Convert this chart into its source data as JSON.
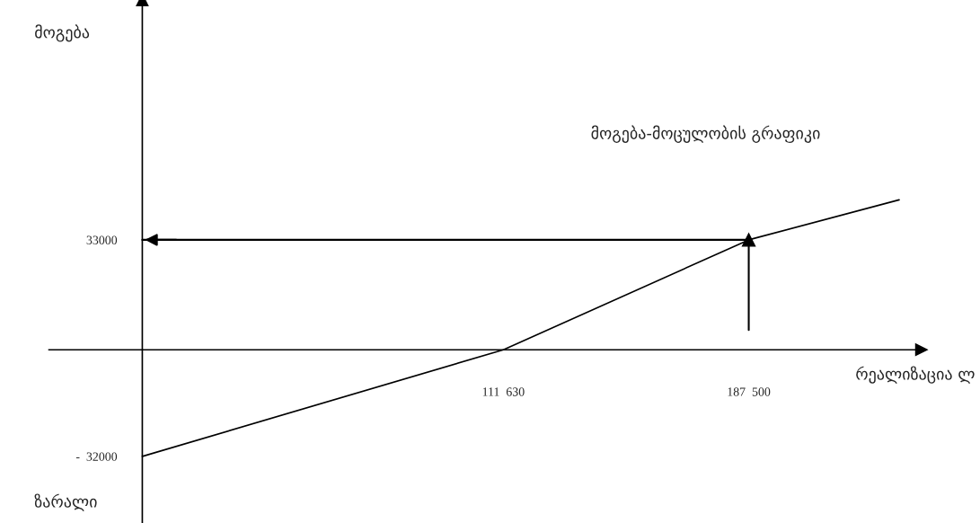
{
  "chart_data": {
    "type": "line",
    "title": "მოგება-მოცულობის გრაფიკი",
    "xlabel": "რეალიზაცია ლ",
    "ylabel": "მოგება",
    "annotations": [
      "ზარალი"
    ],
    "series": [
      {
        "color": "#000000",
        "x": [
          0,
          111630,
          187500,
          234000
        ],
        "values": [
          -32000,
          0,
          33000,
          45000
        ]
      }
    ],
    "xlim": [
      -44000,
      259000
    ],
    "ylim": [
      -52000,
      105000
    ],
    "xticks": [
      {
        "value": 111630,
        "label": "111  630"
      },
      {
        "value": 187500,
        "label": "187  500"
      }
    ],
    "yticks": [
      33000,
      {
        "value": -32000,
        "label": "-  32000"
      }
    ],
    "ref_lines": [
      {
        "axis": "y",
        "value": 33000,
        "label": null
      },
      {
        "axis": "x",
        "value": 187500,
        "label": null
      }
    ]
  }
}
